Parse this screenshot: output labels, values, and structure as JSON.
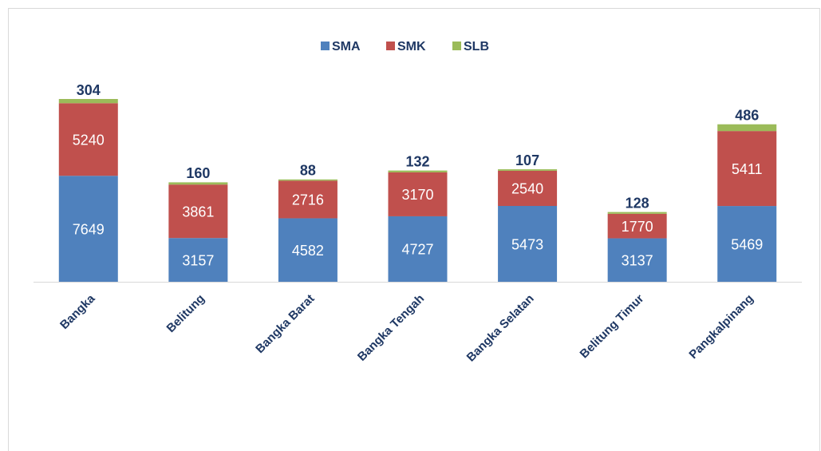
{
  "chart_data": {
    "type": "stacked_bar",
    "categories": [
      "Bangka",
      "Belitung",
      "Bangka Barat",
      "Bangka Tengah",
      "Bangka Selatan",
      "Belitung Timur",
      "Pangkalpinang"
    ],
    "series": [
      {
        "name": "SMA",
        "color": "#4f81bd",
        "values": [
          7649,
          3157,
          4582,
          4727,
          5473,
          3137,
          5469
        ]
      },
      {
        "name": "SMK",
        "color": "#c0504d",
        "values": [
          5240,
          3861,
          2716,
          3170,
          2540,
          1770,
          5411
        ]
      },
      {
        "name": "SLB",
        "color": "#9bbb59",
        "values": [
          304,
          160,
          88,
          132,
          107,
          128,
          486
        ]
      }
    ],
    "legend": "top"
  }
}
